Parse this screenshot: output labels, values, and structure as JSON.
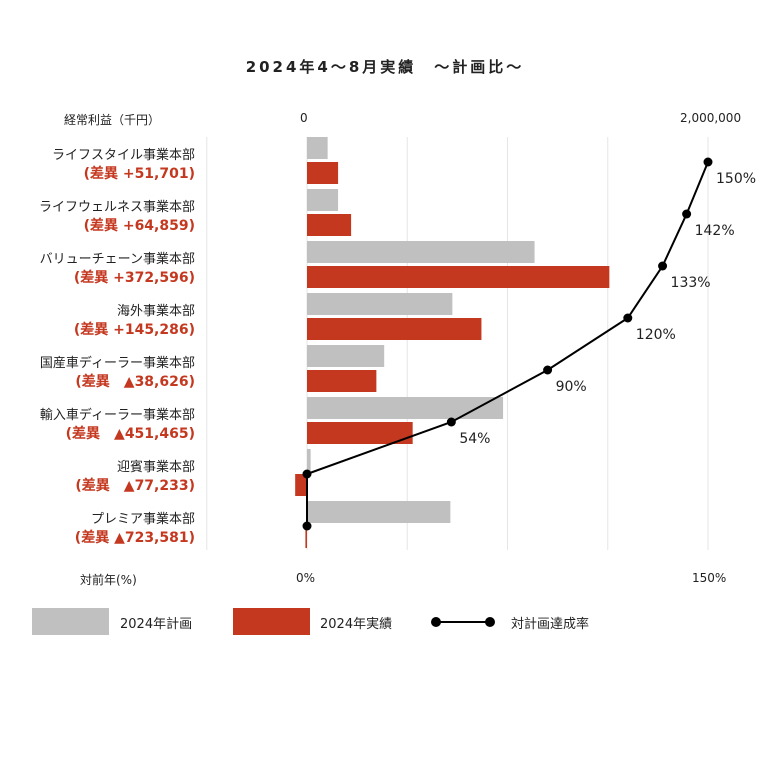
{
  "chart_data": {
    "type": "bar",
    "title": "2024年4〜8月実績　～計画比～",
    "left_axis_label": "経常利益（千円）",
    "bottom_axis_label": "対前年(%)",
    "bar_axis": {
      "min": 0,
      "max": 2000000,
      "min_label": "0",
      "max_label": "2,000,000"
    },
    "rate_axis": {
      "min": 0,
      "max": 150,
      "min_label": "0%",
      "max_label": "150%"
    },
    "categories": [
      "ライフスタイル事業本部",
      "ライフウェルネス事業本部",
      "バリューチェーン事業本部",
      "海外事業本部",
      "国産車ディーラー事業本部",
      "輸入車ディーラー事業本部",
      "迎賓事業本部",
      "プレミア事業本部"
    ],
    "differences": [
      "(差異 +51,701)",
      "(差異 +64,859)",
      "(差異 +372,596)",
      "(差異 +145,286)",
      "(差異　▲38,626)",
      "(差異　▲451,465)",
      "(差異　▲77,233)",
      "(差異 ▲723,581)"
    ],
    "series": [
      {
        "name": "2024年計画",
        "color": "#c0c0c0",
        "values": [
          103000,
          155000,
          1135000,
          725000,
          385000,
          978000,
          18000,
          715000
        ]
      },
      {
        "name": "2024年実績",
        "color": "#c4381f",
        "values": [
          155000,
          220000,
          1508000,
          870000,
          346000,
          527000,
          -59000,
          -8000
        ]
      },
      {
        "name": "対計画達成率",
        "color": "#000000",
        "values": [
          150,
          142,
          133,
          120,
          90,
          54,
          0,
          0
        ]
      }
    ],
    "rate_labels": [
      "150%",
      "142%",
      "133%",
      "120%",
      "90%",
      "54%",
      "",
      ""
    ],
    "grid": true,
    "legend_position": "bottom"
  }
}
